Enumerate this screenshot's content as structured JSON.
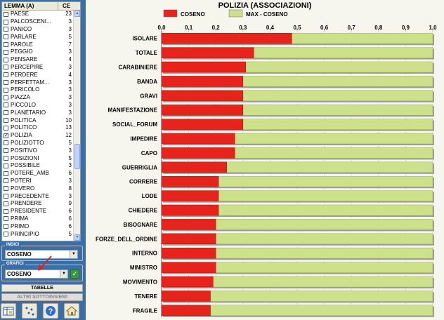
{
  "list": {
    "header_lemma": "LEMMA (A)",
    "header_ce": "CE",
    "rows": [
      {
        "label": "PAESE",
        "count": "23",
        "checked": false
      },
      {
        "label": "PALCOSCENI...",
        "count": "3",
        "checked": false
      },
      {
        "label": "PANICO",
        "count": "3",
        "checked": false
      },
      {
        "label": "PARLARE",
        "count": "5",
        "checked": false
      },
      {
        "label": "PAROLE",
        "count": "7",
        "checked": false
      },
      {
        "label": "PEGGIO",
        "count": "3",
        "checked": false
      },
      {
        "label": "PENSARE",
        "count": "4",
        "checked": false
      },
      {
        "label": "PERCEPIRE",
        "count": "3",
        "checked": false
      },
      {
        "label": "PERDERE",
        "count": "4",
        "checked": false
      },
      {
        "label": "PERFETTAM...",
        "count": "3",
        "checked": false
      },
      {
        "label": "PERICOLO",
        "count": "3",
        "checked": false
      },
      {
        "label": "PIAZZA",
        "count": "3",
        "checked": false
      },
      {
        "label": "PICCOLO",
        "count": "3",
        "checked": false
      },
      {
        "label": "PLANETARIO",
        "count": "3",
        "checked": false
      },
      {
        "label": "POLITICA",
        "count": "10",
        "checked": false
      },
      {
        "label": "POLITICO",
        "count": "13",
        "checked": false
      },
      {
        "label": "POLIZIA",
        "count": "12",
        "checked": true
      },
      {
        "label": "POLIZIOTTO",
        "count": "5",
        "checked": false
      },
      {
        "label": "POSITIVO",
        "count": "3",
        "checked": false
      },
      {
        "label": "POSIZIONI",
        "count": "5",
        "checked": false
      },
      {
        "label": "POSSIBILE",
        "count": "3",
        "checked": false
      },
      {
        "label": "POTERE_AMB",
        "count": "6",
        "checked": false
      },
      {
        "label": "POTERI",
        "count": "3",
        "checked": false
      },
      {
        "label": "POVERO",
        "count": "8",
        "checked": false
      },
      {
        "label": "PRECEDENTE",
        "count": "3",
        "checked": false
      },
      {
        "label": "PRENDERE",
        "count": "9",
        "checked": false
      },
      {
        "label": "PRESIDENTE",
        "count": "6",
        "checked": false
      },
      {
        "label": "PRIMA",
        "count": "6",
        "checked": false
      },
      {
        "label": "PRIMO",
        "count": "6",
        "checked": false
      },
      {
        "label": "PRINCIPIO",
        "count": "5",
        "checked": false
      }
    ]
  },
  "indici": {
    "title": "INDICI",
    "value": "COSENO"
  },
  "grafici": {
    "title": "GRAFICI",
    "value": "COSENO"
  },
  "buttons": {
    "tabelle": "TABELLE",
    "altri": "ALTRI SOTTOINSIEMI"
  },
  "toolbar": [
    "table-icon",
    "scatter-icon",
    "help-icon",
    "home-icon"
  ],
  "colors": {
    "coseno": "#e8231c",
    "max_coseno": "#cde08a",
    "arrow": "#e02020"
  },
  "chart_data": {
    "type": "bar",
    "title": "POLIZIA (ASSOCIAZIONI)",
    "orientation": "horizontal",
    "stacked": true,
    "xlim": [
      0,
      1
    ],
    "xticks": [
      "0,0",
      "0,1",
      "0,2",
      "0,3",
      "0,4",
      "0,5",
      "0,6",
      "0,7",
      "0,8",
      "0,9",
      "1,0"
    ],
    "legend": [
      "COSENO",
      "MAX - COSENO"
    ],
    "legend_position": "top",
    "categories": [
      "ISOLARE",
      "TOTALE",
      "CARABINIERE",
      "BANDA",
      "GRAVI",
      "MANIFESTAZIONE",
      "SOCIAL_FORUM",
      "IMPEDIRE",
      "CAPO",
      "GUERRIGLIA",
      "CORRERE",
      "LODE",
      "CHIEDERE",
      "BISOGNARE",
      "FORZE_DELL_ORDINE",
      "INTERNO",
      "MINISTRO",
      "MOVIMENTO",
      "TENERE",
      "FRAGILE"
    ],
    "series": [
      {
        "name": "COSENO",
        "values": [
          0.48,
          0.34,
          0.31,
          0.3,
          0.3,
          0.3,
          0.3,
          0.27,
          0.27,
          0.24,
          0.21,
          0.21,
          0.21,
          0.2,
          0.2,
          0.2,
          0.2,
          0.19,
          0.18,
          0.18
        ]
      },
      {
        "name": "MAX - COSENO",
        "values": [
          0.52,
          0.66,
          0.69,
          0.7,
          0.7,
          0.7,
          0.7,
          0.73,
          0.73,
          0.76,
          0.79,
          0.79,
          0.79,
          0.8,
          0.8,
          0.8,
          0.8,
          0.81,
          0.82,
          0.82
        ]
      }
    ]
  }
}
